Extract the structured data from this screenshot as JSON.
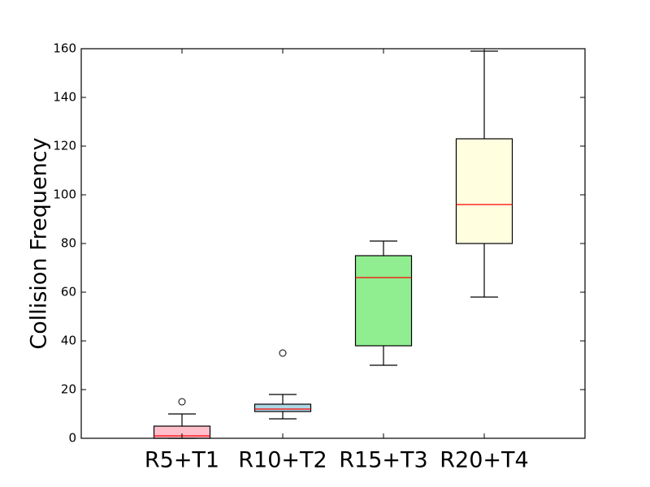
{
  "chart_data": {
    "type": "box",
    "title": "",
    "xlabel": "",
    "ylabel": "Collision Frequency",
    "ylim": [
      0,
      160
    ],
    "yticks": [
      0,
      20,
      40,
      60,
      80,
      100,
      120,
      140,
      160
    ],
    "grid": false,
    "legend": "none",
    "categories": [
      "R5+T1",
      "R10+T2",
      "R15+T3",
      "R20+T4"
    ],
    "boxes": [
      {
        "category": "R5+T1",
        "whisker_low": 0,
        "q1": 0,
        "median": 1,
        "q3": 5,
        "whisker_high": 10,
        "outliers": [
          15
        ],
        "color": "#ffc0cb"
      },
      {
        "category": "R10+T2",
        "whisker_low": 8,
        "q1": 11,
        "median": 12,
        "q3": 14,
        "whisker_high": 18,
        "outliers": [
          35
        ],
        "color": "#add8e6"
      },
      {
        "category": "R15+T3",
        "whisker_low": 30,
        "q1": 38,
        "median": 66,
        "q3": 75,
        "whisker_high": 81,
        "outliers": [],
        "color": "#90ee90"
      },
      {
        "category": "R20+T4",
        "whisker_low": 58,
        "q1": 80,
        "median": 96,
        "q3": 123,
        "whisker_high": 159,
        "outliers": [],
        "color": "#ffffe0"
      }
    ],
    "median_color": "#ff0000"
  }
}
